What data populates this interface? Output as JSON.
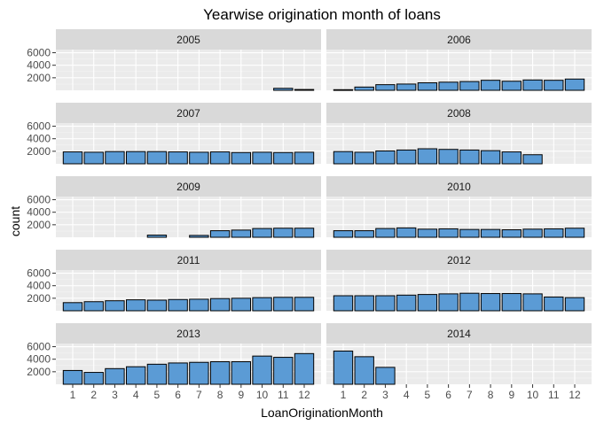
{
  "chart_data": {
    "type": "bar",
    "title": "Yearwise origination month of loans",
    "xlabel": "LoanOriginationMonth",
    "ylabel": "count",
    "x_ticks": [
      "1",
      "2",
      "3",
      "4",
      "5",
      "6",
      "7",
      "8",
      "9",
      "10",
      "11",
      "12"
    ],
    "y_ticks": [
      2000,
      4000,
      6000
    ],
    "ylim": [
      0,
      6500
    ],
    "grid": true,
    "bar_fill": "#5b9bd5",
    "bar_outline": "#000000",
    "panel_bg": "#ebebeb",
    "strip_bg": "#d9d9d9",
    "panels": [
      {
        "name": "2005",
        "values": [
          null,
          null,
          null,
          null,
          null,
          null,
          null,
          null,
          null,
          null,
          320,
          130
        ]
      },
      {
        "name": "2006",
        "values": [
          100,
          520,
          900,
          1000,
          1200,
          1300,
          1400,
          1600,
          1450,
          1650,
          1600,
          1800
        ]
      },
      {
        "name": "2007",
        "values": [
          1900,
          1850,
          1950,
          1950,
          1950,
          1900,
          1850,
          1900,
          1800,
          1850,
          1800,
          1850
        ]
      },
      {
        "name": "2008",
        "values": [
          1950,
          1850,
          2050,
          2200,
          2400,
          2300,
          2200,
          2100,
          1900,
          1450,
          null,
          null
        ]
      },
      {
        "name": "2009",
        "values": [
          null,
          null,
          null,
          null,
          350,
          null,
          300,
          1050,
          1150,
          1400,
          1450,
          1450
        ]
      },
      {
        "name": "2010",
        "values": [
          1050,
          1050,
          1400,
          1500,
          1300,
          1350,
          1250,
          1250,
          1200,
          1300,
          1350,
          1450
        ]
      },
      {
        "name": "2011",
        "values": [
          1300,
          1450,
          1600,
          1750,
          1700,
          1800,
          1850,
          1950,
          2000,
          2100,
          2150,
          2150
        ]
      },
      {
        "name": "2012",
        "values": [
          2400,
          2400,
          2400,
          2500,
          2600,
          2700,
          2800,
          2750,
          2750,
          2700,
          2200,
          2100
        ]
      },
      {
        "name": "2013",
        "values": [
          2200,
          1900,
          2500,
          2800,
          3200,
          3400,
          3500,
          3600,
          3600,
          4500,
          4300,
          4900
        ]
      },
      {
        "name": "2014",
        "values": [
          5300,
          4400,
          2700,
          null,
          null,
          null,
          null,
          null,
          null,
          null,
          null,
          null
        ]
      }
    ]
  }
}
